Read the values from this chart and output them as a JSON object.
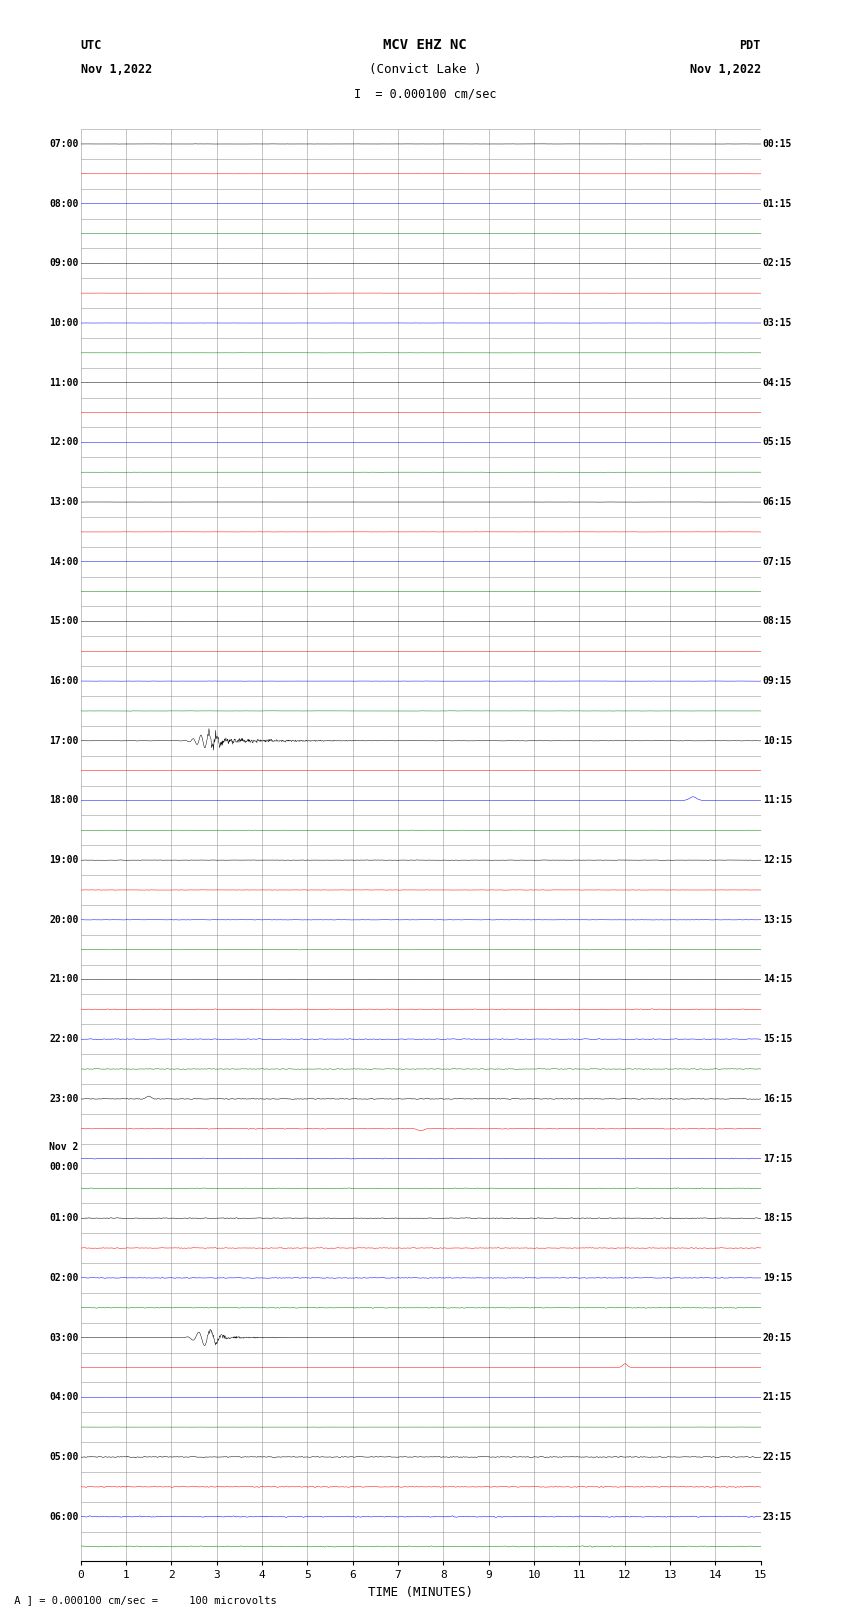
{
  "title_line1": "MCV EHZ NC",
  "title_line2": "(Convict Lake )",
  "title_scale": "I  = 0.000100 cm/sec",
  "left_header_line1": "UTC",
  "left_header_line2": "Nov 1,2022",
  "right_header_line1": "PDT",
  "right_header_line2": "Nov 1,2022",
  "xlabel": "TIME (MINUTES)",
  "footnote": " A ] = 0.000100 cm/sec =     100 microvolts",
  "xlim": [
    0,
    15
  ],
  "xticks": [
    0,
    1,
    2,
    3,
    4,
    5,
    6,
    7,
    8,
    9,
    10,
    11,
    12,
    13,
    14,
    15
  ],
  "background_color": "#ffffff",
  "grid_color": "#999999",
  "trace_color_cycle": [
    "#000000",
    "#ff0000",
    "#0000ff",
    "#008000"
  ],
  "fig_width": 8.5,
  "fig_height": 16.13,
  "dpi": 100,
  "utc_labels": [
    "07:00",
    "",
    "08:00",
    "",
    "09:00",
    "",
    "10:00",
    "",
    "11:00",
    "",
    "12:00",
    "",
    "13:00",
    "",
    "14:00",
    "",
    "15:00",
    "",
    "16:00",
    "",
    "17:00",
    "",
    "18:00",
    "",
    "19:00",
    "",
    "20:00",
    "",
    "21:00",
    "",
    "22:00",
    "",
    "23:00",
    "",
    "Nov 2\n00:00",
    "",
    "01:00",
    "",
    "02:00",
    "",
    "03:00",
    "",
    "04:00",
    "",
    "05:00",
    "",
    "06:00",
    ""
  ],
  "pdt_labels": [
    "00:15",
    "",
    "01:15",
    "",
    "02:15",
    "",
    "03:15",
    "",
    "04:15",
    "",
    "05:15",
    "",
    "06:15",
    "",
    "07:15",
    "",
    "08:15",
    "",
    "09:15",
    "",
    "10:15",
    "",
    "11:15",
    "",
    "12:15",
    "",
    "13:15",
    "",
    "14:15",
    "",
    "15:15",
    "",
    "16:15",
    "",
    "17:15",
    "",
    "18:15",
    "",
    "19:15",
    "",
    "20:15",
    "",
    "21:15",
    "",
    "22:15",
    "",
    "23:15",
    ""
  ],
  "noise_profile": [
    0.01,
    0.01,
    0.01,
    0.01,
    0.01,
    0.01,
    0.01,
    0.01,
    0.01,
    0.01,
    0.01,
    0.01,
    0.012,
    0.012,
    0.012,
    0.012,
    0.01,
    0.01,
    0.015,
    0.015,
    0.025,
    0.025,
    0.025,
    0.025,
    0.025,
    0.025,
    0.025,
    0.03,
    0.03,
    0.06,
    0.06,
    0.06,
    0.06,
    0.06,
    0.06,
    0.06,
    0.06,
    0.06,
    0.06,
    0.06,
    0.01,
    0.01,
    0.01,
    0.01,
    0.08,
    0.08,
    0.08,
    0.08
  ],
  "row_scale": 0.35
}
